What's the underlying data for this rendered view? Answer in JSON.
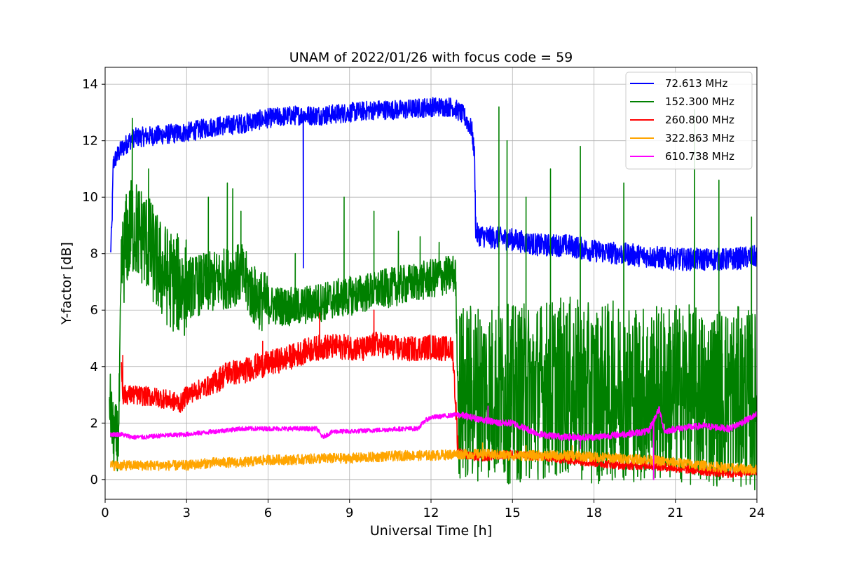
{
  "chart_data": {
    "type": "line",
    "title": "UNAM of 2022/01/26 with focus code = 59",
    "xlabel": "Universal Time [h]",
    "ylabel": "Y-factor [dB]",
    "xlim": [
      0,
      24
    ],
    "ylim": [
      -0.7,
      14.6
    ],
    "xticks": [
      0,
      3,
      6,
      9,
      12,
      15,
      18,
      21,
      24
    ],
    "yticks": [
      0,
      2,
      4,
      6,
      8,
      10,
      12,
      14
    ],
    "grid": true,
    "legend_position": "top-right",
    "series": [
      {
        "name": " 72.613 MHz",
        "color": "#0000ff",
        "start": 0.2,
        "end": 24,
        "points": [
          [
            0.2,
            8.0
          ],
          [
            0.25,
            9.0
          ],
          [
            0.3,
            11.2
          ],
          [
            0.4,
            11.4
          ],
          [
            0.6,
            11.7
          ],
          [
            1,
            12.1
          ],
          [
            2,
            12.2
          ],
          [
            3,
            12.3
          ],
          [
            4,
            12.5
          ],
          [
            5,
            12.6
          ],
          [
            6,
            12.8
          ],
          [
            7,
            12.9
          ],
          [
            8,
            12.9
          ],
          [
            9,
            13.0
          ],
          [
            10,
            13.1
          ],
          [
            11,
            13.1
          ],
          [
            12,
            13.2
          ],
          [
            12.8,
            13.2
          ],
          [
            13.2,
            12.9
          ],
          [
            13.5,
            12.4
          ],
          [
            13.6,
            11.5
          ],
          [
            13.65,
            8.7
          ],
          [
            14,
            8.6
          ],
          [
            15,
            8.5
          ],
          [
            16,
            8.3
          ],
          [
            17,
            8.3
          ],
          [
            18,
            8.1
          ],
          [
            19,
            8.0
          ],
          [
            20,
            7.9
          ],
          [
            21,
            7.8
          ],
          [
            22,
            7.8
          ],
          [
            23,
            7.8
          ],
          [
            24,
            7.9
          ]
        ],
        "noise": [
          [
            0,
            0.35
          ],
          [
            13.6,
            0.4
          ],
          [
            24,
            0.45
          ]
        ],
        "spikes": [
          [
            7.3,
            7.5
          ],
          [
            13.65,
            9.3
          ]
        ]
      },
      {
        "name": "152.300 MHz",
        "color": "#008000",
        "start": 0.15,
        "end": 24,
        "points": [
          [
            0.15,
            3.0
          ],
          [
            0.3,
            1.5
          ],
          [
            0.5,
            1.5
          ],
          [
            0.6,
            7.5
          ],
          [
            0.8,
            8.5
          ],
          [
            1,
            9.0
          ],
          [
            1.5,
            8.5
          ],
          [
            2,
            7.5
          ],
          [
            2.5,
            7.0
          ],
          [
            3,
            6.8
          ],
          [
            4,
            7.0
          ],
          [
            5,
            7.3
          ],
          [
            5.5,
            6.5
          ],
          [
            6,
            6.2
          ],
          [
            7,
            6.1
          ],
          [
            8,
            6.3
          ],
          [
            9,
            6.5
          ],
          [
            10,
            6.7
          ],
          [
            11,
            6.9
          ],
          [
            12,
            7.1
          ],
          [
            12.9,
            7.3
          ],
          [
            13.0,
            3.0
          ],
          [
            14,
            3.2
          ],
          [
            15,
            3.0
          ],
          [
            16,
            3.2
          ],
          [
            17,
            3.3
          ],
          [
            18,
            3.0
          ],
          [
            19,
            3.2
          ],
          [
            20,
            3.0
          ],
          [
            21,
            3.1
          ],
          [
            22,
            2.9
          ],
          [
            23,
            3.0
          ],
          [
            24,
            2.8
          ]
        ],
        "noise": [
          [
            0,
            1.2
          ],
          [
            0.6,
            1.8
          ],
          [
            3,
            1.1
          ],
          [
            6,
            0.7
          ],
          [
            12.9,
            0.6
          ],
          [
            13,
            3.2
          ],
          [
            24,
            3.4
          ]
        ],
        "spikes": [
          [
            1.0,
            12.8
          ],
          [
            1.6,
            11.0
          ],
          [
            3.8,
            10.0
          ],
          [
            4.5,
            10.5
          ],
          [
            4.7,
            10.3
          ],
          [
            5.0,
            9.5
          ],
          [
            7.0,
            8.0
          ],
          [
            8.8,
            10.0
          ],
          [
            9.9,
            9.5
          ],
          [
            10.8,
            8.8
          ],
          [
            11.6,
            8.6
          ],
          [
            12.3,
            8.4
          ],
          [
            14.5,
            13.2
          ],
          [
            14.8,
            12.0
          ],
          [
            15.5,
            10.0
          ],
          [
            16.4,
            11.0
          ],
          [
            17.5,
            11.8
          ],
          [
            19.1,
            10.5
          ],
          [
            21.7,
            13.1
          ],
          [
            22.6,
            10.6
          ],
          [
            23.8,
            9.3
          ]
        ]
      },
      {
        "name": "260.800 MHz",
        "color": "#ff0000",
        "start": 0.6,
        "end": 24,
        "points": [
          [
            0.6,
            4.0
          ],
          [
            0.65,
            3.0
          ],
          [
            1,
            3.0
          ],
          [
            2,
            2.9
          ],
          [
            2.8,
            2.7
          ],
          [
            3,
            3.0
          ],
          [
            3.5,
            3.2
          ],
          [
            4,
            3.4
          ],
          [
            4.5,
            3.8
          ],
          [
            5,
            3.8
          ],
          [
            5.5,
            4.0
          ],
          [
            6,
            4.1
          ],
          [
            7,
            4.4
          ],
          [
            7.5,
            4.6
          ],
          [
            8,
            4.7
          ],
          [
            9,
            4.7
          ],
          [
            9.5,
            4.6
          ],
          [
            10,
            4.8
          ],
          [
            11,
            4.6
          ],
          [
            12,
            4.7
          ],
          [
            12.8,
            4.6
          ],
          [
            13.0,
            1.0
          ],
          [
            13.5,
            0.8
          ],
          [
            14,
            0.8
          ],
          [
            15,
            0.9
          ],
          [
            16,
            0.8
          ],
          [
            17,
            0.7
          ],
          [
            18,
            0.6
          ],
          [
            19,
            0.5
          ],
          [
            20,
            0.5
          ],
          [
            21,
            0.4
          ],
          [
            22,
            0.3
          ],
          [
            23,
            0.2
          ],
          [
            24,
            0.3
          ]
        ],
        "noise": [
          [
            0,
            0.35
          ],
          [
            4,
            0.45
          ],
          [
            12.9,
            0.45
          ],
          [
            13,
            0.15
          ],
          [
            24,
            0.12
          ]
        ],
        "spikes": [
          [
            0.65,
            4.4
          ],
          [
            5.8,
            4.9
          ],
          [
            7.9,
            5.9
          ],
          [
            9.9,
            6.0
          ]
        ]
      },
      {
        "name": "322.863 MHz",
        "color": "#ffa500",
        "start": 0.2,
        "end": 24,
        "points": [
          [
            0.2,
            0.5
          ],
          [
            1,
            0.5
          ],
          [
            2,
            0.5
          ],
          [
            3,
            0.5
          ],
          [
            4,
            0.6
          ],
          [
            5,
            0.6
          ],
          [
            6,
            0.7
          ],
          [
            7,
            0.7
          ],
          [
            8,
            0.75
          ],
          [
            9,
            0.75
          ],
          [
            10,
            0.8
          ],
          [
            11,
            0.85
          ],
          [
            12,
            0.85
          ],
          [
            13,
            0.9
          ],
          [
            14,
            0.9
          ],
          [
            15,
            0.85
          ],
          [
            16,
            0.85
          ],
          [
            17,
            0.85
          ],
          [
            18,
            0.8
          ],
          [
            19,
            0.75
          ],
          [
            20,
            0.7
          ],
          [
            21,
            0.6
          ],
          [
            22,
            0.5
          ],
          [
            23,
            0.4
          ],
          [
            24,
            0.35
          ]
        ],
        "noise": [
          [
            0,
            0.18
          ],
          [
            24,
            0.18
          ]
        ],
        "spikes": [
          [
            13.9,
            1.3
          ],
          [
            15.5,
            1.2
          ],
          [
            17.2,
            1.2
          ]
        ]
      },
      {
        "name": "610.738 MHz",
        "color": "#ff00ff",
        "start": 0.2,
        "end": 24,
        "points": [
          [
            0.2,
            1.6
          ],
          [
            0.6,
            1.6
          ],
          [
            1,
            1.5
          ],
          [
            1.5,
            1.5
          ],
          [
            2,
            1.55
          ],
          [
            3,
            1.6
          ],
          [
            4,
            1.7
          ],
          [
            5,
            1.8
          ],
          [
            6,
            1.8
          ],
          [
            7,
            1.8
          ],
          [
            7.8,
            1.8
          ],
          [
            8.0,
            1.5
          ],
          [
            8.4,
            1.7
          ],
          [
            9,
            1.7
          ],
          [
            10,
            1.75
          ],
          [
            11,
            1.8
          ],
          [
            11.5,
            1.8
          ],
          [
            11.8,
            2.1
          ],
          [
            12,
            2.2
          ],
          [
            13,
            2.3
          ],
          [
            14,
            2.1
          ],
          [
            14.5,
            2.0
          ],
          [
            15,
            2.0
          ],
          [
            15.5,
            1.8
          ],
          [
            16,
            1.6
          ],
          [
            17,
            1.5
          ],
          [
            18,
            1.5
          ],
          [
            19,
            1.6
          ],
          [
            20,
            1.7
          ],
          [
            20.4,
            2.5
          ],
          [
            20.6,
            1.7
          ],
          [
            21,
            1.8
          ],
          [
            22,
            1.9
          ],
          [
            23,
            1.8
          ],
          [
            24,
            2.3
          ]
        ],
        "noise": [
          [
            0,
            0.08
          ],
          [
            13,
            0.12
          ],
          [
            24,
            0.15
          ]
        ],
        "spikes": [
          [
            14.1,
            2.6
          ],
          [
            20.2,
            0.0
          ],
          [
            17.5,
            1.1
          ]
        ]
      }
    ]
  }
}
